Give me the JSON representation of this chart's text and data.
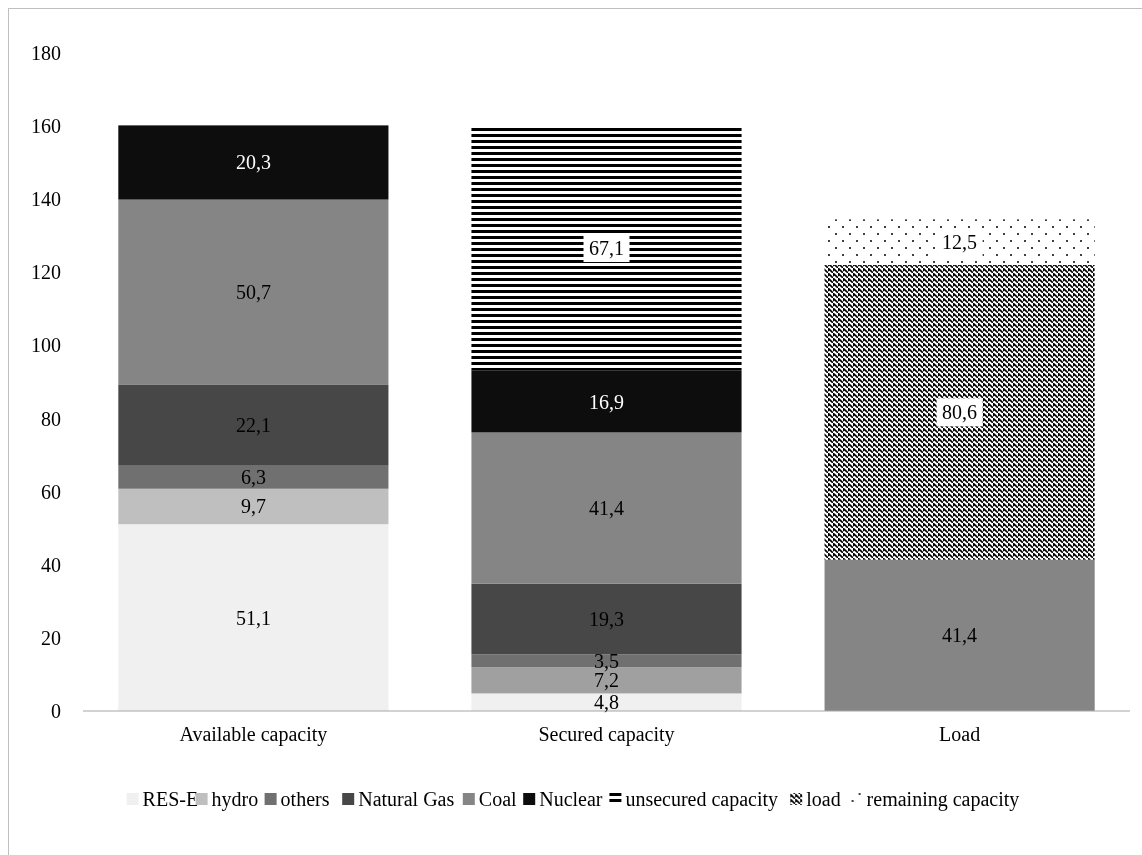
{
  "chart_data": {
    "type": "bar",
    "stacked": true,
    "categories": [
      "Available capacity",
      "Secured capacity",
      "Load"
    ],
    "ylim": [
      0,
      180
    ],
    "yticks": [
      0,
      20,
      40,
      60,
      80,
      100,
      120,
      140,
      160,
      180
    ],
    "grid": false,
    "legend": "bottom",
    "series": [
      {
        "name": "RES-E",
        "color": "#f0f0f0",
        "values": [
          51.1,
          4.8,
          null
        ],
        "value_labels": [
          "51,1",
          "4,8",
          null
        ]
      },
      {
        "name": "hydro",
        "color": "#bfbfbf",
        "colors": [
          "#bfbfbf",
          "#a0a0a0",
          null
        ],
        "values": [
          9.7,
          7.2,
          null
        ],
        "value_labels": [
          "9,7",
          "7,2",
          null
        ]
      },
      {
        "name": "others",
        "color": "#707070",
        "values": [
          6.3,
          3.5,
          null
        ],
        "value_labels": [
          "6,3",
          "3,5",
          null
        ]
      },
      {
        "name": "Natural Gas",
        "color": "#474747",
        "values": [
          22.1,
          19.3,
          null
        ],
        "value_labels": [
          "22,1",
          "19,3",
          null
        ]
      },
      {
        "name": "Coal",
        "color": "#858585",
        "values": [
          50.7,
          41.4,
          41.4
        ],
        "value_labels": [
          "50,7",
          "41,4",
          "41,4"
        ]
      },
      {
        "name": "Nuclear",
        "color": "#0d0d0d",
        "values": [
          20.3,
          16.9,
          null
        ],
        "value_labels": [
          "20,3",
          "16,9",
          null
        ]
      },
      {
        "name": "unsecured capacity",
        "color": "#000000",
        "values": [
          null,
          67.1,
          null
        ],
        "value_labels": [
          null,
          "67,1",
          null
        ]
      },
      {
        "name": "load",
        "color": "#000000",
        "values": [
          null,
          null,
          80.6
        ],
        "value_labels": [
          null,
          null,
          "80,6"
        ]
      },
      {
        "name": "remaining capacity",
        "color": "#000000",
        "values": [
          null,
          null,
          12.5
        ],
        "value_labels": [
          null,
          null,
          "12,5"
        ]
      }
    ]
  }
}
